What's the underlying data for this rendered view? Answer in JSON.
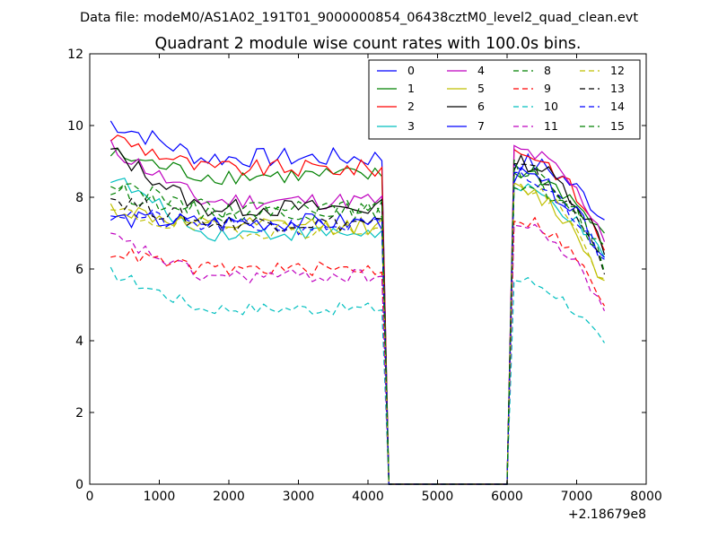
{
  "chart_data": {
    "type": "line",
    "suptitle": "Data file: modeM0/AS1A02_191T01_9000000854_06438cztM0_level2_quad_clean.evt",
    "title": "Quadrant 2 module wise count rates with 100.0s bins.",
    "xlabel": "",
    "ylabel": "",
    "x_offset_label": "+2.18679e8",
    "xlim": [
      0,
      8000
    ],
    "ylim": [
      0,
      12
    ],
    "xticks": [
      "0",
      "1000",
      "2000",
      "3000",
      "4000",
      "5000",
      "6000",
      "7000",
      "8000"
    ],
    "yticks": [
      "0",
      "2",
      "4",
      "6",
      "8",
      "10",
      "12"
    ],
    "legend_position": "top-right",
    "grid": false,
    "x": [
      300,
      400,
      500,
      600,
      700,
      800,
      900,
      1000,
      1100,
      1200,
      1300,
      1400,
      1500,
      1600,
      1700,
      1800,
      1900,
      2000,
      2100,
      2200,
      2300,
      2400,
      2500,
      2600,
      2700,
      2800,
      2900,
      3000,
      3100,
      3200,
      3300,
      3400,
      3500,
      3600,
      3700,
      3800,
      3900,
      4000,
      4100,
      4200,
      4300,
      4400,
      4500,
      4600,
      4700,
      4800,
      4900,
      5000,
      5100,
      5200,
      5300,
      5400,
      5500,
      5600,
      5700,
      5800,
      5900,
      6000,
      6100,
      6200,
      6300,
      6400,
      6500,
      6600,
      6700,
      6800,
      6900,
      7000,
      7100,
      7200,
      7300,
      7400
    ],
    "series": [
      {
        "name": "0",
        "color": "#0000ff",
        "dash": "solid",
        "base": 9.1,
        "edge": 10.1,
        "tail": 9.0,
        "end": 7.4,
        "noise": 0.28
      },
      {
        "name": "1",
        "color": "#008000",
        "dash": "solid",
        "base": 8.6,
        "edge": 9.2,
        "tail": 8.7,
        "end": 6.8,
        "noise": 0.25
      },
      {
        "name": "2",
        "color": "#ff0000",
        "dash": "solid",
        "base": 8.8,
        "edge": 9.7,
        "tail": 9.3,
        "end": 6.6,
        "noise": 0.25
      },
      {
        "name": "3",
        "color": "#00bfbf",
        "dash": "solid",
        "base": 7.0,
        "edge": 8.6,
        "tail": 8.2,
        "end": 6.2,
        "noise": 0.22
      },
      {
        "name": "4",
        "color": "#bf00bf",
        "dash": "solid",
        "base": 7.9,
        "edge": 9.4,
        "tail": 9.3,
        "end": 6.9,
        "noise": 0.25
      },
      {
        "name": "5",
        "color": "#bfbf00",
        "dash": "solid",
        "base": 7.2,
        "edge": 7.7,
        "tail": 8.2,
        "end": 5.6,
        "noise": 0.25
      },
      {
        "name": "6",
        "color": "#000000",
        "dash": "solid",
        "base": 7.7,
        "edge": 9.3,
        "tail": 9.0,
        "end": 6.6,
        "noise": 0.25
      },
      {
        "name": "7",
        "color": "#0000ff",
        "dash": "solid",
        "base": 7.3,
        "edge": 7.4,
        "tail": 8.6,
        "end": 6.3,
        "noise": 0.25
      },
      {
        "name": "8",
        "color": "#008000",
        "dash": "dash",
        "base": 7.6,
        "edge": 8.2,
        "tail": 8.4,
        "end": 6.4,
        "noise": 0.25
      },
      {
        "name": "9",
        "color": "#ff0000",
        "dash": "dash",
        "base": 6.0,
        "edge": 6.5,
        "tail": 7.4,
        "end": 5.0,
        "noise": 0.2
      },
      {
        "name": "10",
        "color": "#00bfbf",
        "dash": "dash",
        "base": 4.9,
        "edge": 5.9,
        "tail": 5.7,
        "end": 3.8,
        "noise": 0.18
      },
      {
        "name": "11",
        "color": "#bf00bf",
        "dash": "dash",
        "base": 5.8,
        "edge": 6.9,
        "tail": 7.2,
        "end": 4.9,
        "noise": 0.2
      },
      {
        "name": "12",
        "color": "#bfbf00",
        "dash": "dash",
        "base": 7.1,
        "edge": 7.6,
        "tail": 8.3,
        "end": 5.6,
        "noise": 0.25
      },
      {
        "name": "13",
        "color": "#000000",
        "dash": "dash",
        "base": 7.3,
        "edge": 8.0,
        "tail": 8.8,
        "end": 6.0,
        "noise": 0.25
      },
      {
        "name": "14",
        "color": "#0000ff",
        "dash": "dash",
        "base": 7.2,
        "edge": 7.6,
        "tail": 8.5,
        "end": 6.2,
        "noise": 0.25
      },
      {
        "name": "15",
        "color": "#008000",
        "dash": "dash",
        "base": 7.7,
        "edge": 8.5,
        "tail": 8.8,
        "end": 6.1,
        "noise": 0.25
      }
    ]
  }
}
